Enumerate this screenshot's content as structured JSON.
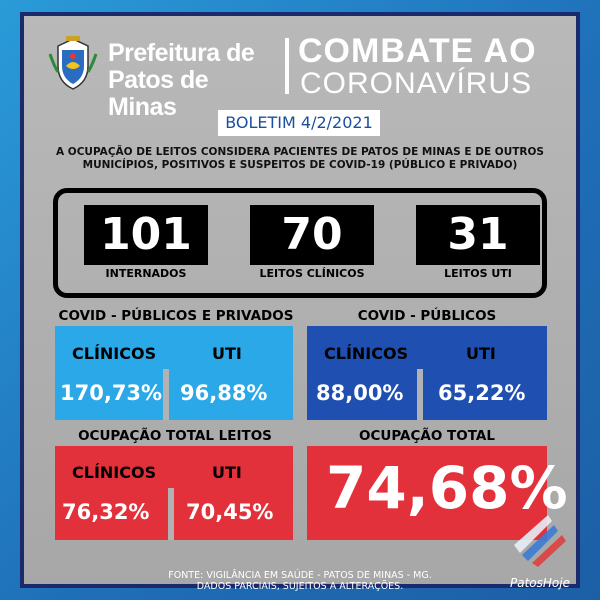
{
  "header": {
    "prefeitura_line1": "Prefeitura de",
    "prefeitura_line2": "Patos de Minas",
    "title_line1": "COMBATE AO",
    "title_line2": "CORONAVÍRUS",
    "boletim": "BOLETIM 4/2/2021"
  },
  "note": {
    "line1": "A OCUPAÇÃO DE LEITOS CONSIDERA PACIENTES DE PATOS DE MINAS E DE OUTROS",
    "line2": "MUNICÍPIOS, POSITIVOS E SUSPEITOS DE COVID-19 (PÚBLICO E PRIVADO)"
  },
  "stats": [
    {
      "value": "101",
      "label": "INTERNADOS"
    },
    {
      "value": "70",
      "label": "LEITOS CLÍNICOS"
    },
    {
      "value": "31",
      "label": "LEITOS UTI"
    }
  ],
  "covid_publicos_privados": {
    "title": "COVID - PÚBLICOS E PRIVADOS",
    "clinicos_label": "CLÍNICOS",
    "uti_label": "UTI",
    "clinicos": "170,73%",
    "uti": "96,88%"
  },
  "covid_publicos": {
    "title": "COVID - PÚBLICOS",
    "clinicos_label": "CLÍNICOS",
    "uti_label": "UTI",
    "clinicos": "88,00%",
    "uti": "65,22%"
  },
  "ocupacao_total_leitos": {
    "title": "OCUPAÇÃO TOTAL LEITOS",
    "clinicos_label": "CLÍNICOS",
    "uti_label": "UTI",
    "clinicos": "76,32%",
    "uti": "70,45%"
  },
  "ocupacao_total": {
    "title": "OCUPAÇÃO TOTAL",
    "value": "74,68%"
  },
  "footer": {
    "line1": "FONTE: VIGILÂNCIA EM SAÚDE - PATOS DE MINAS - MG.",
    "line2": "DADOS PARCIAIS, SUJEITOS A ALTERAÇÕES."
  },
  "watermark": "PatosHoje",
  "colors": {
    "background": "#1f6fb8",
    "light_blue": "#2aa8e8",
    "dark_blue": "#1f4fb0",
    "red": "#e2313a",
    "frame": "#1b2a6d"
  },
  "icons": [
    "crest-icon",
    "patoshoje-logo-icon"
  ]
}
